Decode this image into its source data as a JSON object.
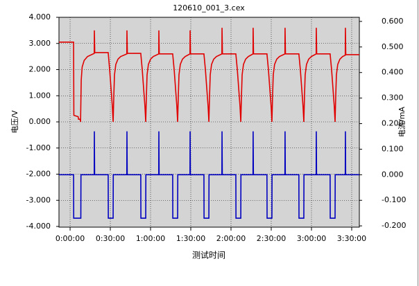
{
  "chart_data": {
    "type": "line",
    "title": "120610_001_3.cex",
    "x_label": "测试时间",
    "y_label": "电压/V",
    "y2_label": "电流/mA",
    "grid": true,
    "xlim": [
      -8.3,
      215.7
    ],
    "xticks": [
      {
        "value": 0,
        "label": "0:00:00"
      },
      {
        "value": 30,
        "label": "0:30:00"
      },
      {
        "value": 60,
        "label": "1:00:00"
      },
      {
        "value": 90,
        "label": "1:30:00"
      },
      {
        "value": 120,
        "label": "2:00:00"
      },
      {
        "value": 150,
        "label": "2:30:00"
      },
      {
        "value": 180,
        "label": "3:00:00"
      },
      {
        "value": 210,
        "label": "3:30:00"
      }
    ],
    "ylim": [
      -4,
      4
    ],
    "yticks": [
      {
        "value": 4,
        "label": "4.000"
      },
      {
        "value": 3,
        "label": "3.000"
      },
      {
        "value": 2,
        "label": "2.000"
      },
      {
        "value": 1,
        "label": "1.000"
      },
      {
        "value": 0,
        "label": "0.000"
      },
      {
        "value": -1,
        "label": "-1.000"
      },
      {
        "value": -2,
        "label": "-2.000"
      },
      {
        "value": -3,
        "label": "-3.000"
      },
      {
        "value": -4,
        "label": "-4.000"
      }
    ],
    "y2lim": [
      -0.205,
      0.616
    ],
    "y2ticks": [
      {
        "value": 0.6,
        "label": "0.600"
      },
      {
        "value": 0.5,
        "label": "0.500"
      },
      {
        "value": 0.4,
        "label": "0.400"
      },
      {
        "value": 0.3,
        "label": "0.300"
      },
      {
        "value": 0.2,
        "label": "0.200"
      },
      {
        "value": 0.1,
        "label": "0.100"
      },
      {
        "value": 0,
        "label": "0.000"
      },
      {
        "value": -0.1,
        "label": "-0.100"
      },
      {
        "value": -0.2,
        "label": "-0.200"
      }
    ],
    "series": [
      {
        "color": "#e00000",
        "axis": "y",
        "x": [
          -8.3,
          2.6,
          2.8,
          6.0,
          6.3,
          7.5,
          7.8,
          8.3,
          9.0,
          10.5,
          13.0,
          18.0,
          18.1,
          18.4,
          28.4,
          29.5,
          30.5,
          31.5,
          32.1,
          32.6,
          33.1,
          34.1,
          35.7,
          37.7,
          42.3,
          42.4,
          42.7,
          52.7,
          53.8,
          54.8,
          55.8,
          56.4,
          56.9,
          57.4,
          58.4,
          60.0,
          62.0,
          66.1,
          66.2,
          66.5,
          76.5,
          77.6,
          78.6,
          79.6,
          80.2,
          80.7,
          81.2,
          82.2,
          83.8,
          85.8,
          89.4,
          89.5,
          89.8,
          99.8,
          100.9,
          101.9,
          102.9,
          103.5,
          104.0,
          104.5,
          105.5,
          107.1,
          109.1,
          113.2,
          113.3,
          113.6,
          123.6,
          124.7,
          125.7,
          126.7,
          127.3,
          127.8,
          128.3,
          129.3,
          130.9,
          132.9,
          136.4,
          136.5,
          136.8,
          146.8,
          147.9,
          148.9,
          149.9,
          150.5,
          151.0,
          151.5,
          152.5,
          154.1,
          156.1,
          160.2,
          160.3,
          160.6,
          170.6,
          171.7,
          172.7,
          173.7,
          174.3,
          174.8,
          175.3,
          176.3,
          177.9,
          179.9,
          183.5,
          183.6,
          183.9,
          193.9,
          195.0,
          196.0,
          197.0,
          197.6,
          198.1,
          198.6,
          199.6,
          201.2,
          203.2,
          205.2,
          205.3,
          205.6,
          215.7
        ],
        "values": [
          3.05,
          3.05,
          0.25,
          0.2,
          0.1,
          0.1,
          0.0,
          1.6,
          2.1,
          2.35,
          2.5,
          2.62,
          3.5,
          2.65,
          2.65,
          2.0,
          1.3,
          0.6,
          0.0,
          1.0,
          1.8,
          2.2,
          2.4,
          2.5,
          2.6,
          3.5,
          2.62,
          2.62,
          2.0,
          1.3,
          0.6,
          0.0,
          1.0,
          1.8,
          2.2,
          2.4,
          2.5,
          2.6,
          3.5,
          2.6,
          2.6,
          2.0,
          1.3,
          0.6,
          0.0,
          1.0,
          1.8,
          2.2,
          2.4,
          2.5,
          2.6,
          3.5,
          2.6,
          2.6,
          2.0,
          1.3,
          0.6,
          0.0,
          1.0,
          1.8,
          2.2,
          2.4,
          2.5,
          2.6,
          3.6,
          2.6,
          2.6,
          2.0,
          1.3,
          0.6,
          0.0,
          1.0,
          1.8,
          2.2,
          2.4,
          2.5,
          2.6,
          3.6,
          2.6,
          2.6,
          2.0,
          1.3,
          0.6,
          0.0,
          1.0,
          1.8,
          2.2,
          2.4,
          2.5,
          2.6,
          3.6,
          2.6,
          2.6,
          2.0,
          1.3,
          0.6,
          0.0,
          1.0,
          1.8,
          2.2,
          2.4,
          2.5,
          2.6,
          3.6,
          2.6,
          2.6,
          2.0,
          1.3,
          0.6,
          0.0,
          1.0,
          1.8,
          2.2,
          2.4,
          2.5,
          2.55,
          3.6,
          2.57,
          2.57
        ]
      },
      {
        "color": "#0000c0",
        "axis": "y2",
        "x": [
          -8.3,
          2.6,
          2.7,
          8.0,
          8.1,
          18.0,
          18.1,
          18.3,
          28.4,
          28.5,
          32.1,
          32.2,
          42.3,
          42.4,
          42.6,
          52.7,
          52.8,
          56.4,
          56.5,
          66.1,
          66.2,
          66.4,
          76.5,
          76.6,
          80.2,
          80.3,
          89.4,
          89.5,
          89.7,
          99.8,
          99.9,
          103.5,
          103.6,
          113.2,
          113.3,
          113.5,
          123.6,
          123.7,
          127.3,
          127.4,
          136.4,
          136.5,
          136.7,
          146.8,
          146.9,
          150.5,
          150.6,
          160.2,
          160.3,
          160.5,
          170.6,
          170.7,
          174.3,
          174.4,
          183.5,
          183.6,
          183.8,
          193.9,
          194.0,
          197.6,
          197.7,
          205.2,
          205.3,
          205.5,
          215.7
        ],
        "values": [
          0,
          0,
          -0.17,
          -0.17,
          0,
          0,
          0.17,
          0,
          0,
          -0.17,
          -0.17,
          0,
          0,
          0.17,
          0,
          0,
          -0.17,
          -0.17,
          0,
          0,
          0.17,
          0,
          0,
          -0.17,
          -0.17,
          0,
          0,
          0.17,
          0,
          0,
          -0.17,
          -0.17,
          0,
          0,
          0.17,
          0,
          0,
          -0.17,
          -0.17,
          0,
          0,
          0.17,
          0,
          0,
          -0.17,
          -0.17,
          0,
          0,
          0.17,
          0,
          0,
          -0.17,
          -0.17,
          0,
          0,
          0.17,
          0,
          0,
          -0.17,
          -0.17,
          0,
          0,
          0.17,
          0,
          0
        ]
      }
    ]
  }
}
